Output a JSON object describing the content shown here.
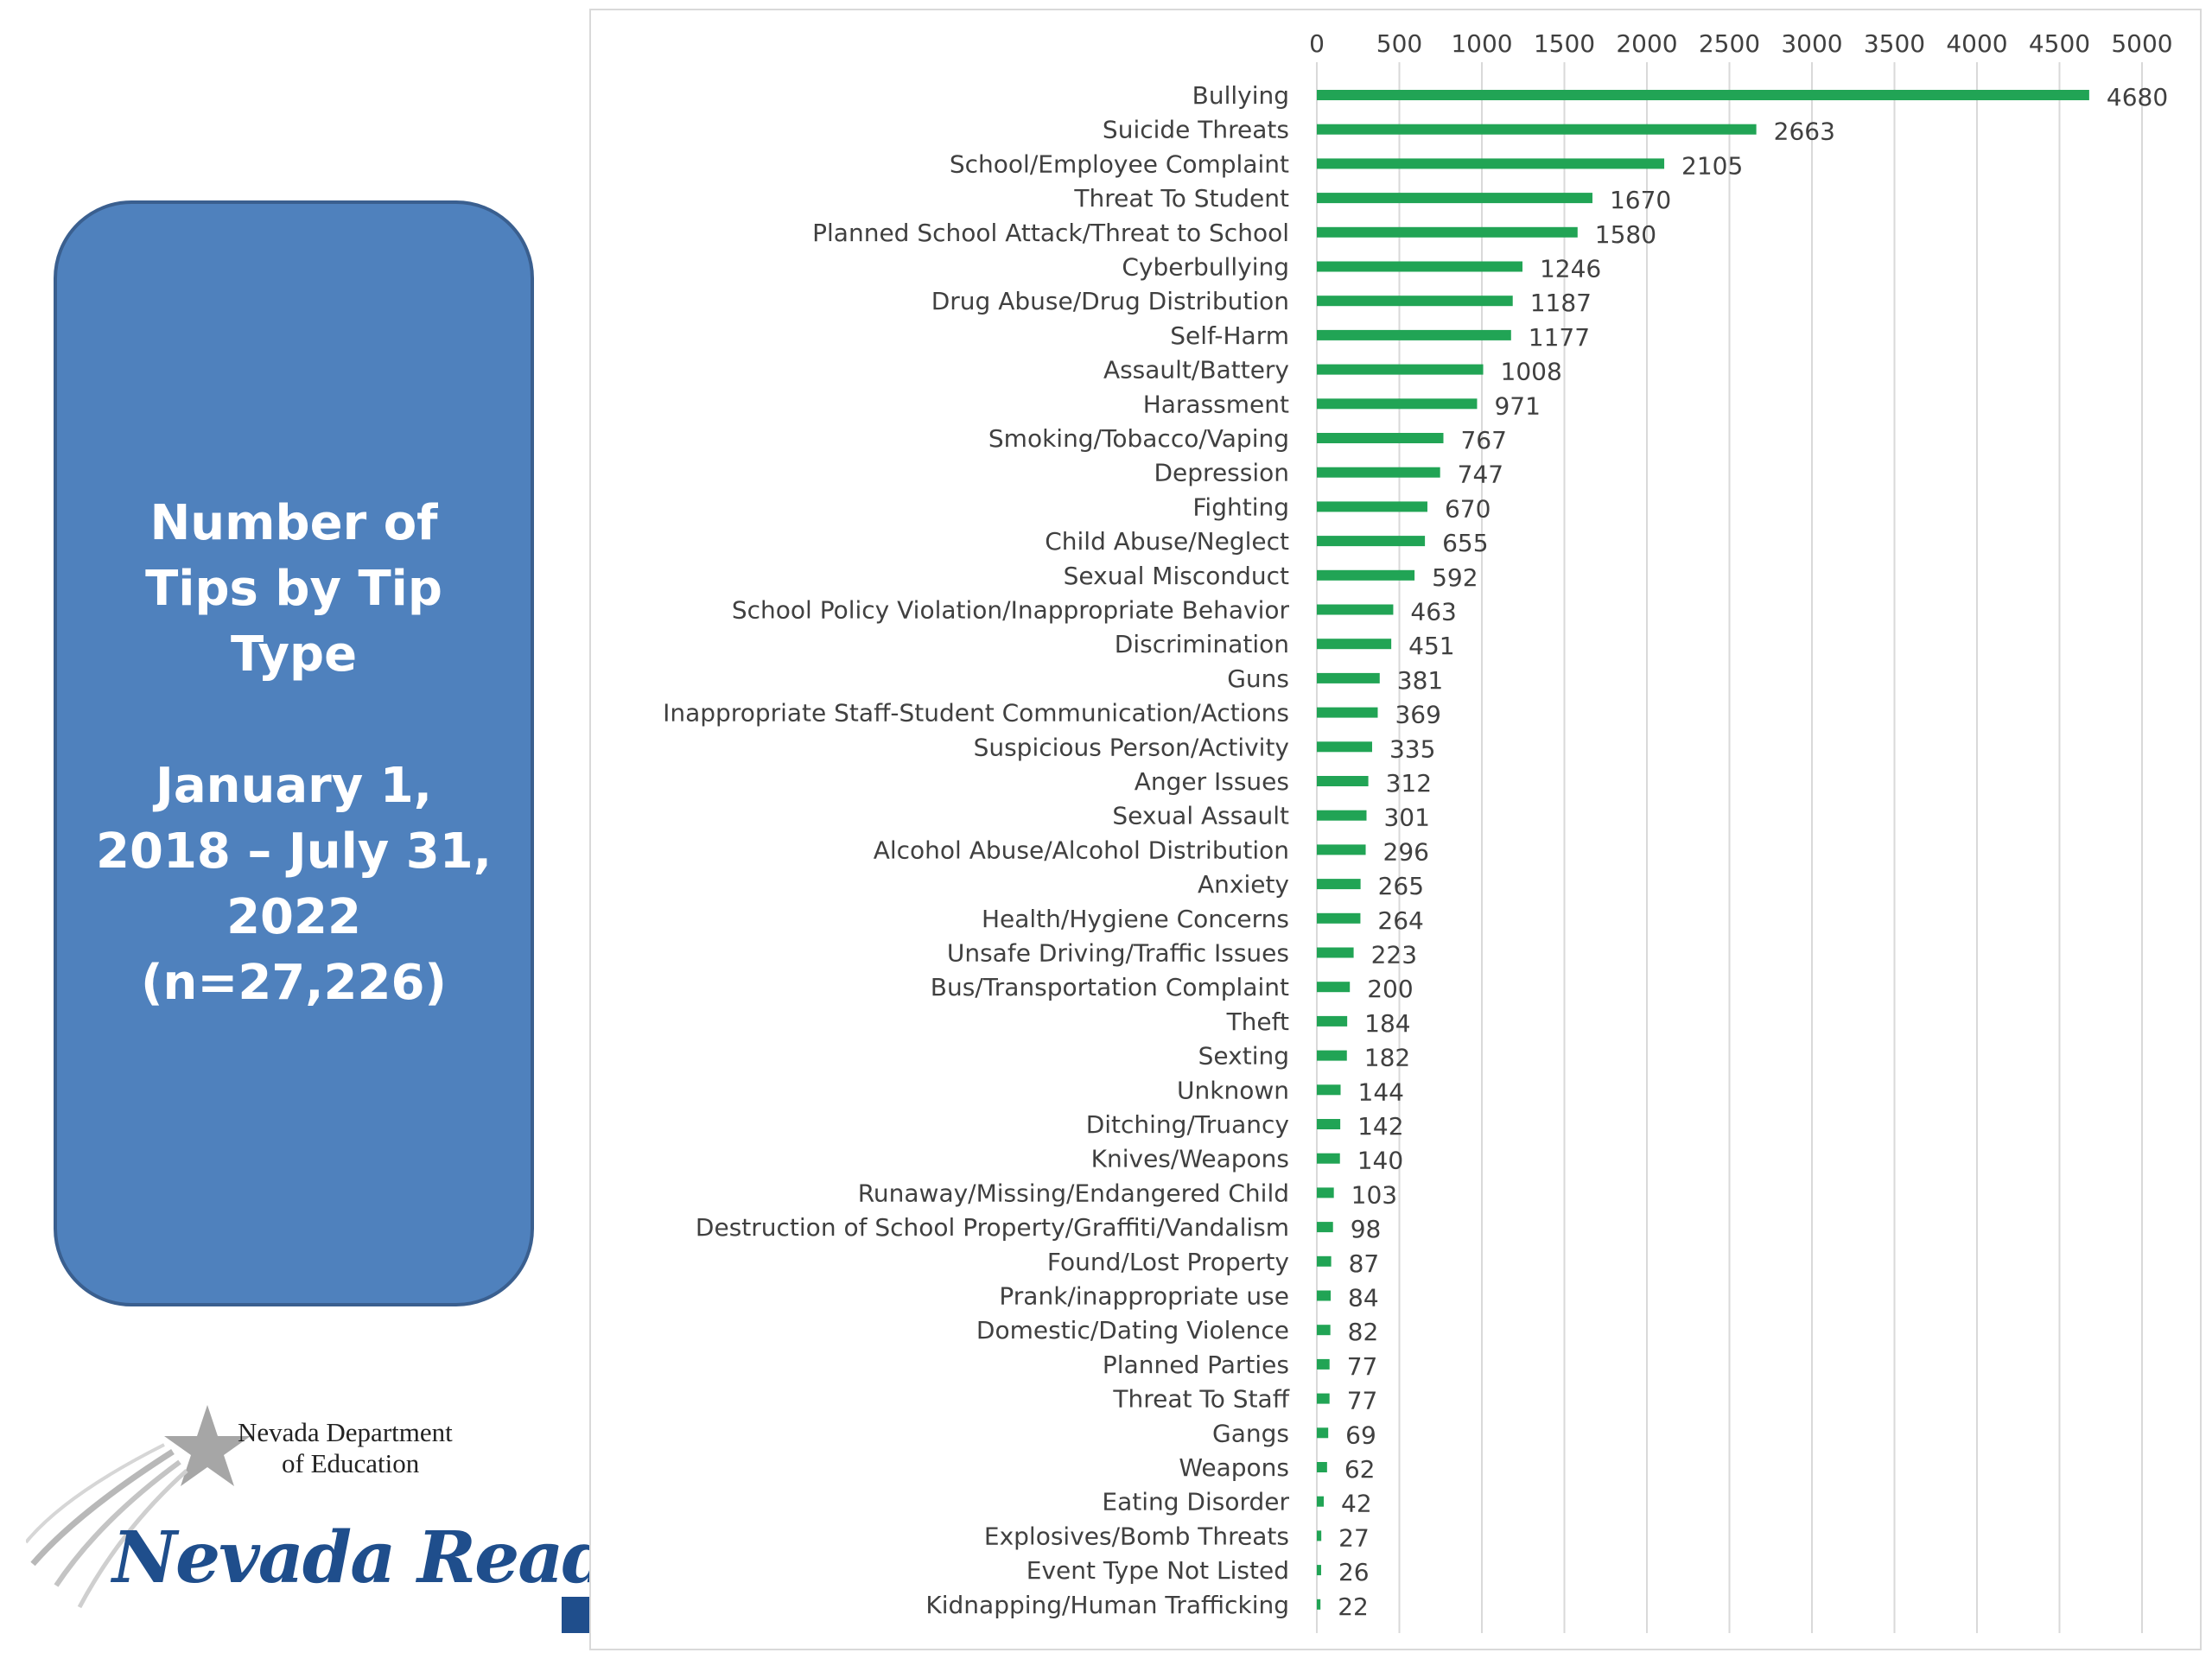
{
  "panel": {
    "title_lines": [
      "Number of",
      "Tips by Tip",
      "Type"
    ],
    "date_lines": [
      "January 1,",
      "2018 – July 31,",
      "2022",
      "(n=27,226)"
    ]
  },
  "logo": {
    "dept_line1": "Nevada Department",
    "dept_line2": "of Education",
    "tagline": "Nevada Ready!"
  },
  "colors": {
    "bar": "#21a455",
    "panel": "#4f81bd",
    "gridline": "#d9d9d9"
  },
  "chart_data": {
    "type": "bar",
    "orientation": "horizontal",
    "axis_position": "top",
    "xlim": [
      0,
      5000
    ],
    "ticks": [
      0,
      500,
      1000,
      1500,
      2000,
      2500,
      3000,
      3500,
      4000,
      4500,
      5000
    ],
    "grid": true,
    "categories": [
      "Bullying",
      "Suicide Threats",
      "School/Employee Complaint",
      "Threat To Student",
      "Planned School Attack/Threat to School",
      "Cyberbullying",
      "Drug Abuse/Drug Distribution",
      "Self-Harm",
      "Assault/Battery",
      "Harassment",
      "Smoking/Tobacco/Vaping",
      "Depression",
      "Fighting",
      "Child Abuse/Neglect",
      "Sexual Misconduct",
      "School Policy Violation/Inappropriate Behavior",
      "Discrimination",
      "Guns",
      "Inappropriate Staff-Student Communication/Actions",
      "Suspicious Person/Activity",
      "Anger Issues",
      "Sexual Assault",
      "Alcohol Abuse/Alcohol Distribution",
      "Anxiety",
      "Health/Hygiene Concerns",
      "Unsafe Driving/Traffic Issues",
      "Bus/Transportation Complaint",
      "Theft",
      "Sexting",
      "Unknown",
      "Ditching/Truancy",
      "Knives/Weapons",
      "Runaway/Missing/Endangered Child",
      "Destruction of School Property/Graffiti/Vandalism",
      "Found/Lost Property",
      "Prank/inappropriate use",
      "Domestic/Dating Violence",
      "Planned Parties",
      "Threat To Staff",
      "Gangs",
      "Weapons",
      "Eating Disorder",
      "Explosives/Bomb Threats",
      "Event Type Not Listed",
      "Kidnapping/Human Trafficking"
    ],
    "values": [
      4680,
      2663,
      2105,
      1670,
      1580,
      1246,
      1187,
      1177,
      1008,
      971,
      767,
      747,
      670,
      655,
      592,
      463,
      451,
      381,
      369,
      335,
      312,
      301,
      296,
      265,
      264,
      223,
      200,
      184,
      182,
      144,
      142,
      140,
      103,
      98,
      87,
      84,
      82,
      77,
      77,
      69,
      62,
      42,
      27,
      26,
      22
    ]
  }
}
